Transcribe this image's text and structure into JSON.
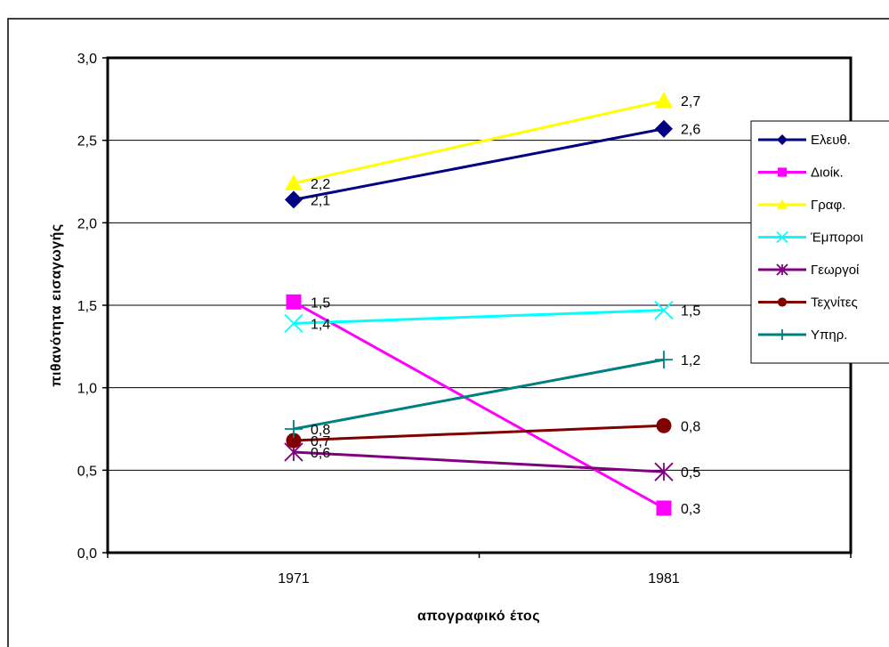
{
  "chart_data": {
    "type": "line",
    "title": "",
    "xlabel": "απογραφικό έτος",
    "ylabel": "πιθανότητα εισαγωγής",
    "categories": [
      "1971",
      "1981"
    ],
    "ylim": [
      0,
      3
    ],
    "yticks": [
      "0,0",
      "0,5",
      "1,0",
      "1,5",
      "2,0",
      "2,5",
      "3,0"
    ],
    "grid": true,
    "legend_position": "right",
    "series": [
      {
        "name": "Ελευθ.",
        "values": [
          2.14,
          2.57
        ],
        "labels": [
          "2,1",
          "2,6"
        ],
        "color": "#000080",
        "marker": "diamond"
      },
      {
        "name": "Διοίκ.",
        "values": [
          1.52,
          0.27
        ],
        "labels": [
          "1,5",
          "0,3"
        ],
        "color": "#FF00FF",
        "marker": "square"
      },
      {
        "name": "Γραφ.",
        "values": [
          2.24,
          2.74
        ],
        "labels": [
          "2,2",
          "2,7"
        ],
        "color": "#FFFF00",
        "marker": "triangle"
      },
      {
        "name": "Έμποροι",
        "values": [
          1.39,
          1.47
        ],
        "labels": [
          "1,4",
          "1,5"
        ],
        "color": "#00FFFF",
        "marker": "x"
      },
      {
        "name": "Γεωργοί",
        "values": [
          0.61,
          0.49
        ],
        "labels": [
          "0,6",
          "0,5"
        ],
        "color": "#800080",
        "marker": "star"
      },
      {
        "name": "Τεχνίτες",
        "values": [
          0.68,
          0.77
        ],
        "labels": [
          "0,7",
          "0,8"
        ],
        "color": "#800000",
        "marker": "circle"
      },
      {
        "name": "Υπηρ.",
        "values": [
          0.75,
          1.17
        ],
        "labels": [
          "0,8",
          "1,2"
        ],
        "color": "#008080",
        "marker": "plus"
      }
    ]
  }
}
